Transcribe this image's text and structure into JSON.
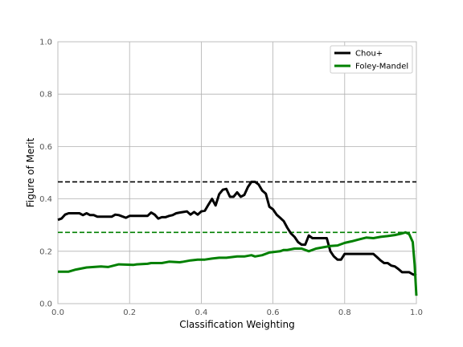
{
  "chart_data": {
    "type": "line",
    "xlabel": "Classification Weighting",
    "ylabel": "Figure of Merit",
    "xlim": [
      0,
      1
    ],
    "ylim": [
      0,
      1
    ],
    "x_ticks": [
      "0.0",
      "0.2",
      "0.4",
      "0.6",
      "0.8",
      "1.0"
    ],
    "y_ticks": [
      "0.0",
      "0.2",
      "0.4",
      "0.6",
      "0.8",
      "1.0"
    ],
    "grid": true,
    "legend_position": "top-right",
    "series": [
      {
        "name": "Chou+",
        "color": "#000000",
        "max_value": 0.465,
        "points": [
          [
            0.0,
            0.32
          ],
          [
            0.01,
            0.325
          ],
          [
            0.02,
            0.34
          ],
          [
            0.03,
            0.345
          ],
          [
            0.06,
            0.345
          ],
          [
            0.07,
            0.338
          ],
          [
            0.08,
            0.345
          ],
          [
            0.09,
            0.338
          ],
          [
            0.1,
            0.338
          ],
          [
            0.11,
            0.332
          ],
          [
            0.15,
            0.332
          ],
          [
            0.16,
            0.34
          ],
          [
            0.17,
            0.338
          ],
          [
            0.19,
            0.328
          ],
          [
            0.2,
            0.335
          ],
          [
            0.25,
            0.335
          ],
          [
            0.26,
            0.348
          ],
          [
            0.27,
            0.34
          ],
          [
            0.28,
            0.325
          ],
          [
            0.29,
            0.33
          ],
          [
            0.3,
            0.33
          ],
          [
            0.31,
            0.335
          ],
          [
            0.32,
            0.338
          ],
          [
            0.33,
            0.345
          ],
          [
            0.34,
            0.348
          ],
          [
            0.36,
            0.352
          ],
          [
            0.37,
            0.34
          ],
          [
            0.38,
            0.35
          ],
          [
            0.39,
            0.34
          ],
          [
            0.4,
            0.352
          ],
          [
            0.41,
            0.355
          ],
          [
            0.42,
            0.378
          ],
          [
            0.43,
            0.4
          ],
          [
            0.44,
            0.375
          ],
          [
            0.45,
            0.418
          ],
          [
            0.46,
            0.435
          ],
          [
            0.47,
            0.438
          ],
          [
            0.48,
            0.408
          ],
          [
            0.49,
            0.408
          ],
          [
            0.5,
            0.425
          ],
          [
            0.51,
            0.408
          ],
          [
            0.52,
            0.415
          ],
          [
            0.53,
            0.445
          ],
          [
            0.54,
            0.465
          ],
          [
            0.55,
            0.465
          ],
          [
            0.56,
            0.455
          ],
          [
            0.57,
            0.432
          ],
          [
            0.58,
            0.42
          ],
          [
            0.59,
            0.37
          ],
          [
            0.6,
            0.36
          ],
          [
            0.61,
            0.34
          ],
          [
            0.62,
            0.328
          ],
          [
            0.63,
            0.315
          ],
          [
            0.64,
            0.29
          ],
          [
            0.65,
            0.268
          ],
          [
            0.66,
            0.255
          ],
          [
            0.67,
            0.235
          ],
          [
            0.68,
            0.225
          ],
          [
            0.69,
            0.225
          ],
          [
            0.7,
            0.26
          ],
          [
            0.71,
            0.25
          ],
          [
            0.75,
            0.25
          ],
          [
            0.76,
            0.2
          ],
          [
            0.77,
            0.18
          ],
          [
            0.78,
            0.168
          ],
          [
            0.79,
            0.168
          ],
          [
            0.8,
            0.19
          ],
          [
            0.88,
            0.19
          ],
          [
            0.89,
            0.178
          ],
          [
            0.9,
            0.165
          ],
          [
            0.91,
            0.155
          ],
          [
            0.92,
            0.155
          ],
          [
            0.93,
            0.145
          ],
          [
            0.94,
            0.142
          ],
          [
            0.95,
            0.132
          ],
          [
            0.96,
            0.12
          ],
          [
            0.98,
            0.12
          ],
          [
            0.99,
            0.112
          ],
          [
            1.0,
            0.108
          ]
        ]
      },
      {
        "name": "Foley-Mandel",
        "color": "#008000",
        "max_value": 0.272,
        "points": [
          [
            0.0,
            0.122
          ],
          [
            0.03,
            0.122
          ],
          [
            0.05,
            0.13
          ],
          [
            0.08,
            0.138
          ],
          [
            0.12,
            0.142
          ],
          [
            0.14,
            0.14
          ],
          [
            0.17,
            0.15
          ],
          [
            0.21,
            0.148
          ],
          [
            0.22,
            0.15
          ],
          [
            0.25,
            0.152
          ],
          [
            0.26,
            0.155
          ],
          [
            0.29,
            0.155
          ],
          [
            0.31,
            0.16
          ],
          [
            0.34,
            0.158
          ],
          [
            0.35,
            0.16
          ],
          [
            0.37,
            0.165
          ],
          [
            0.39,
            0.168
          ],
          [
            0.41,
            0.168
          ],
          [
            0.43,
            0.172
          ],
          [
            0.45,
            0.175
          ],
          [
            0.47,
            0.175
          ],
          [
            0.5,
            0.18
          ],
          [
            0.52,
            0.18
          ],
          [
            0.54,
            0.185
          ],
          [
            0.55,
            0.18
          ],
          [
            0.57,
            0.185
          ],
          [
            0.59,
            0.195
          ],
          [
            0.62,
            0.2
          ],
          [
            0.63,
            0.205
          ],
          [
            0.64,
            0.205
          ],
          [
            0.66,
            0.21
          ],
          [
            0.68,
            0.21
          ],
          [
            0.7,
            0.2
          ],
          [
            0.72,
            0.21
          ],
          [
            0.74,
            0.215
          ],
          [
            0.76,
            0.22
          ],
          [
            0.78,
            0.222
          ],
          [
            0.8,
            0.232
          ],
          [
            0.82,
            0.238
          ],
          [
            0.84,
            0.245
          ],
          [
            0.86,
            0.252
          ],
          [
            0.88,
            0.25
          ],
          [
            0.9,
            0.255
          ],
          [
            0.92,
            0.258
          ],
          [
            0.94,
            0.262
          ],
          [
            0.96,
            0.268
          ],
          [
            0.97,
            0.272
          ],
          [
            0.98,
            0.265
          ],
          [
            0.99,
            0.235
          ],
          [
            0.995,
            0.15
          ],
          [
            1.0,
            0.03
          ]
        ]
      }
    ]
  }
}
